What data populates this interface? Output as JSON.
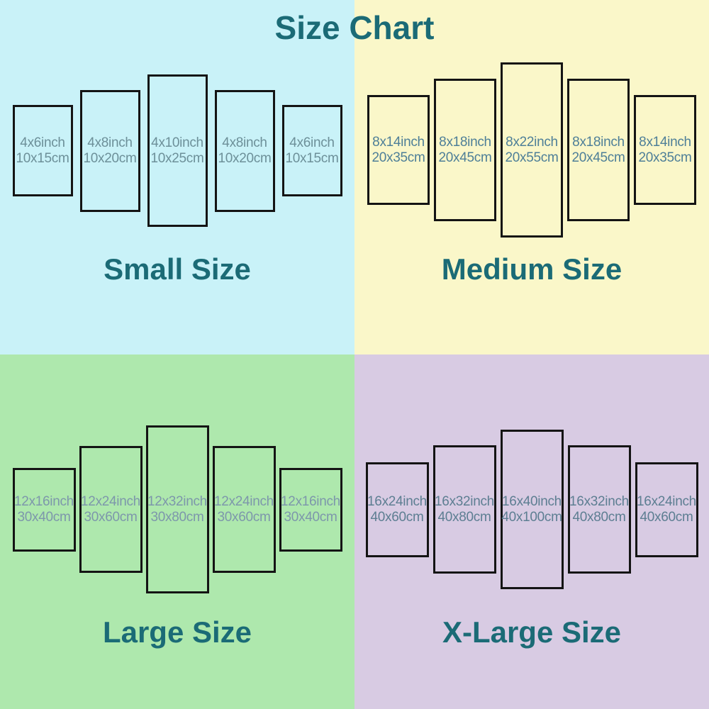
{
  "title": "Size Chart",
  "colors": {
    "heading_text": "#1b6b76",
    "panel_border": "#141414"
  },
  "chart_data": {
    "type": "table",
    "title": "Size Chart",
    "description": "Five-panel canvas wall art size chart with four size groups",
    "groups": [
      {
        "label": "Small Size",
        "panels_inch": [
          "4x6inch",
          "4x8inch",
          "4x10inch",
          "4x8inch",
          "4x6inch"
        ],
        "panels_cm": [
          "10x15cm",
          "10x20cm",
          "10x25cm",
          "10x20cm",
          "10x15cm"
        ]
      },
      {
        "label": "Medium Size",
        "panels_inch": [
          "8x14inch",
          "8x18inch",
          "8x22inch",
          "8x18inch",
          "8x14inch"
        ],
        "panels_cm": [
          "20x35cm",
          "20x45cm",
          "20x55cm",
          "20x45cm",
          "20x35cm"
        ]
      },
      {
        "label": "Large Size",
        "panels_inch": [
          "12x16inch",
          "12x24inch",
          "12x32inch",
          "12x24inch",
          "12x16inch"
        ],
        "panels_cm": [
          "30x40cm",
          "30x60cm",
          "30x80cm",
          "30x60cm",
          "30x40cm"
        ]
      },
      {
        "label": "X-Large Size",
        "panels_inch": [
          "16x24inch",
          "16x32inch",
          "16x40inch",
          "16x32inch",
          "16x24inch"
        ],
        "panels_cm": [
          "40x60cm",
          "40x80cm",
          "40x100cm",
          "40x80cm",
          "40x60cm"
        ]
      }
    ]
  },
  "quadrants": [
    {
      "name": "small",
      "label": "Small Size",
      "background": "#c9f2f8",
      "panel_text_color": "#6d9099",
      "panels": [
        {
          "inch": "4x6inch",
          "cm": "10x15cm"
        },
        {
          "inch": "4x8inch",
          "cm": "10x20cm"
        },
        {
          "inch": "4x10inch",
          "cm": "10x25cm"
        },
        {
          "inch": "4x8inch",
          "cm": "10x20cm"
        },
        {
          "inch": "4x6inch",
          "cm": "10x15cm"
        }
      ]
    },
    {
      "name": "medium",
      "label": "Medium Size",
      "background": "#faf7c9",
      "panel_text_color": "#4e7f98",
      "panels": [
        {
          "inch": "8x14inch",
          "cm": "20x35cm"
        },
        {
          "inch": "8x18inch",
          "cm": "20x45cm"
        },
        {
          "inch": "8x22inch",
          "cm": "20x55cm"
        },
        {
          "inch": "8x18inch",
          "cm": "20x45cm"
        },
        {
          "inch": "8x14inch",
          "cm": "20x35cm"
        }
      ]
    },
    {
      "name": "large",
      "label": "Large Size",
      "background": "#aee8ad",
      "panel_text_color": "#7d97ab",
      "panels": [
        {
          "inch": "12x16inch",
          "cm": "30x40cm"
        },
        {
          "inch": "12x24inch",
          "cm": "30x60cm"
        },
        {
          "inch": "12x32inch",
          "cm": "30x80cm"
        },
        {
          "inch": "12x24inch",
          "cm": "30x60cm"
        },
        {
          "inch": "12x16inch",
          "cm": "30x40cm"
        }
      ]
    },
    {
      "name": "x-large",
      "label": "X-Large Size",
      "background": "#d8cbe3",
      "panel_text_color": "#5d7e92",
      "panels": [
        {
          "inch": "16x24inch",
          "cm": "40x60cm"
        },
        {
          "inch": "16x32inch",
          "cm": "40x80cm"
        },
        {
          "inch": "16x40inch",
          "cm": "40x100cm"
        },
        {
          "inch": "16x32inch",
          "cm": "40x80cm"
        },
        {
          "inch": "16x24inch",
          "cm": "40x60cm"
        }
      ]
    }
  ]
}
